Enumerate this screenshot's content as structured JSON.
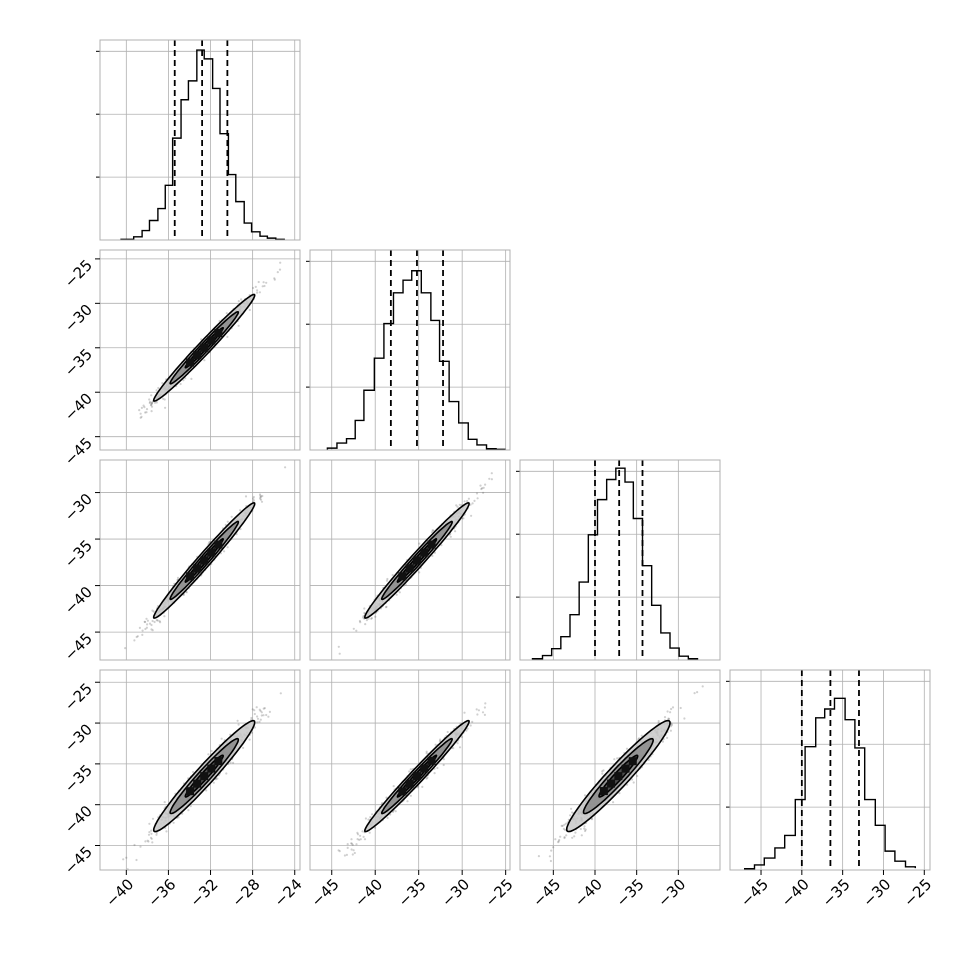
{
  "chart_data": {
    "type": "corner",
    "grid": true,
    "style": {
      "line_color": "#000000",
      "grid_color": "#b0b0b0",
      "point_color": "#555555",
      "fill_light": "#c8c8c8",
      "fill_mid": "#8a8a8a",
      "fill_dark": "#404040"
    },
    "parameters": [
      {
        "xlim": [
          -42.5,
          -23.5
        ],
        "xticks": [
          -40,
          -36,
          -32,
          -28,
          -24
        ],
        "xtick_labels": [
          "−40",
          "−36",
          "−32",
          "−28",
          "−24"
        ],
        "quantiles": [
          -35.4,
          -32.8,
          -30.4
        ],
        "hist_max": 300,
        "hist_ticks": [
          100,
          200,
          300
        ],
        "hist_edges": [
          -40.5,
          -39.3,
          -38.5,
          -37.8,
          -37.0,
          -36.3,
          -35.6,
          -34.8,
          -34.1,
          -33.3,
          -32.6,
          -31.8,
          -31.1,
          -30.3,
          -29.6,
          -28.8,
          -28.1,
          -27.3,
          -26.6,
          -25.8,
          -25.0
        ],
        "hist_counts": [
          1,
          5,
          15,
          31,
          50,
          87,
          162,
          223,
          253,
          302,
          288,
          241,
          169,
          104,
          61,
          27,
          13,
          6,
          3,
          1
        ]
      },
      {
        "xlim": [
          -47.5,
          -24.5
        ],
        "xticks": [
          -45,
          -40,
          -35,
          -30,
          -25
        ],
        "xtick_labels": [
          "−45",
          "−40",
          "−35",
          "−30",
          "−25"
        ],
        "ylim": [
          -46.5,
          -24.0
        ],
        "yticks": [
          -25,
          -30,
          -35,
          -40,
          -45
        ],
        "ytick_labels": [
          "−25",
          "−30",
          "−35",
          "−40",
          "−45"
        ],
        "quantiles": [
          -38.2,
          -35.2,
          -32.2
        ],
        "hist_max": 300,
        "hist_ticks": [
          100,
          200,
          300
        ],
        "hist_edges": [
          -45.5,
          -44.4,
          -43.3,
          -42.3,
          -41.3,
          -40.1,
          -39.0,
          -37.9,
          -36.8,
          -35.8,
          -34.7,
          -33.6,
          -32.6,
          -31.5,
          -30.4,
          -29.3,
          -28.3,
          -27.2,
          -26.1,
          -25.1
        ],
        "hist_counts": [
          3,
          11,
          18,
          47,
          95,
          146,
          201,
          250,
          270,
          285,
          250,
          206,
          141,
          77,
          43,
          17,
          8,
          2,
          1
        ]
      },
      {
        "xlim": [
          -49,
          -25
        ],
        "xticks": [
          -45,
          -40,
          -35,
          -30
        ],
        "xtick_labels": [
          "−45",
          "−40",
          "−35",
          "−30"
        ],
        "ylim": [
          -48.0,
          -26.5
        ],
        "yticks": [
          -30,
          -35,
          -40,
          -45
        ],
        "ytick_labels": [
          "−30",
          "−35",
          "−40",
          "−45"
        ],
        "quantiles": [
          -40.0,
          -37.1,
          -34.3
        ],
        "hist_max": 300,
        "hist_ticks": [
          100,
          200,
          300
        ],
        "hist_edges": [
          -47.5,
          -46.3,
          -45.2,
          -44.1,
          -43.0,
          -41.9,
          -40.8,
          -39.7,
          -38.6,
          -37.5,
          -36.4,
          -35.4,
          -34.3,
          -33.2,
          -32.1,
          -31.0,
          -29.9,
          -28.8,
          -27.7
        ],
        "hist_counts": [
          2,
          7,
          18,
          37,
          72,
          124,
          199,
          255,
          287,
          305,
          283,
          225,
          150,
          87,
          43,
          19,
          6,
          2
        ]
      },
      {
        "xlim": [
          -48.8,
          -24.3
        ],
        "xticks": [
          -45,
          -40,
          -35,
          -30,
          -25
        ],
        "xtick_labels": [
          "−45",
          "−40",
          "−35",
          "−30",
          "−25"
        ],
        "ylim": [
          -48.0,
          -23.5
        ],
        "yticks": [
          -25,
          -30,
          -35,
          -40,
          -45
        ],
        "ytick_labels": [
          "−25",
          "−30",
          "−35",
          "−40",
          "−45"
        ],
        "quantiles": [
          -40.0,
          -36.5,
          -33.0
        ],
        "hist_max": 300,
        "hist_ticks": [
          100,
          200,
          300
        ],
        "hist_edges": [
          -47.0,
          -45.8,
          -44.6,
          -43.3,
          -42.1,
          -40.8,
          -39.6,
          -38.3,
          -37.2,
          -36.0,
          -34.7,
          -33.5,
          -32.3,
          -31.0,
          -29.8,
          -28.6,
          -27.3,
          -26.1
        ],
        "hist_counts": [
          2,
          8,
          19,
          35,
          55,
          112,
          196,
          242,
          256,
          273,
          239,
          194,
          112,
          71,
          30,
          14,
          5,
          3
        ]
      }
    ],
    "pairs": [
      {
        "row": 1,
        "col": 0,
        "mean": [
          -32.6,
          -35.0
        ],
        "sx": 2.4,
        "sy": 3.0,
        "rho": 0.985,
        "n": 700
      },
      {
        "row": 2,
        "col": 0,
        "mean": [
          -32.6,
          -37.3
        ],
        "sx": 2.4,
        "sy": 3.1,
        "rho": 0.985,
        "n": 700
      },
      {
        "row": 2,
        "col": 1,
        "mean": [
          -35.2,
          -37.3
        ],
        "sx": 3.0,
        "sy": 3.1,
        "rho": 0.985,
        "n": 700
      },
      {
        "row": 3,
        "col": 0,
        "mean": [
          -32.6,
          -36.5
        ],
        "sx": 2.4,
        "sy": 3.4,
        "rho": 0.97,
        "n": 700
      },
      {
        "row": 3,
        "col": 1,
        "mean": [
          -35.2,
          -36.5
        ],
        "sx": 3.0,
        "sy": 3.4,
        "rho": 0.985,
        "n": 700
      },
      {
        "row": 3,
        "col": 2,
        "mean": [
          -37.2,
          -36.5
        ],
        "sx": 3.1,
        "sy": 3.4,
        "rho": 0.96,
        "n": 700
      }
    ]
  }
}
